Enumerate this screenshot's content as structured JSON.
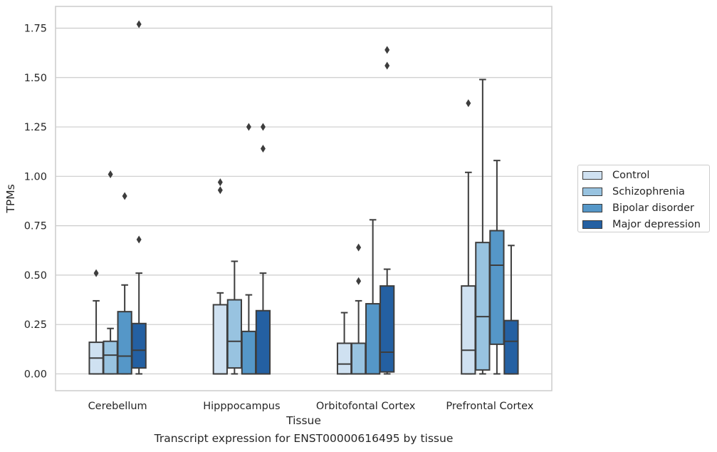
{
  "caption": "Transcript expression for ENST00000616495 by tissue",
  "chart_data": {
    "type": "box",
    "xlabel": "Tissue",
    "ylabel": "TPMs",
    "ylim": [
      -0.085,
      1.86
    ],
    "yticks": [
      0.0,
      0.25,
      0.5,
      0.75,
      1.0,
      1.25,
      1.5,
      1.75
    ],
    "ytick_labels": [
      "0.00",
      "0.25",
      "0.50",
      "0.75",
      "1.00",
      "1.25",
      "1.50",
      "1.75"
    ],
    "grid": "horizontal",
    "legend_position": "right-outside",
    "categories": [
      "Cerebellum",
      "Hipppocampus",
      "Orbitofontal Cortex",
      "Prefrontal Cortex"
    ],
    "series": [
      {
        "name": "Control",
        "color": "#cfe1f1",
        "boxes": [
          {
            "whislo": 0.0,
            "q1": 0.0,
            "med": 0.08,
            "q3": 0.16,
            "whishi": 0.37,
            "fliers": [
              0.51
            ]
          },
          {
            "whislo": 0.0,
            "q1": 0.0,
            "med": 0.0,
            "q3": 0.35,
            "whishi": 0.41,
            "fliers": [
              0.93,
              0.97
            ]
          },
          {
            "whislo": 0.0,
            "q1": 0.0,
            "med": 0.05,
            "q3": 0.155,
            "whishi": 0.31,
            "fliers": []
          },
          {
            "whislo": 0.0,
            "q1": 0.0,
            "med": 0.12,
            "q3": 0.445,
            "whishi": 1.02,
            "fliers": [
              1.37
            ]
          }
        ]
      },
      {
        "name": "Schizophrenia",
        "color": "#98c3e0",
        "boxes": [
          {
            "whislo": 0.0,
            "q1": 0.0,
            "med": 0.095,
            "q3": 0.165,
            "whishi": 0.23,
            "fliers": [
              1.01
            ]
          },
          {
            "whislo": 0.0,
            "q1": 0.03,
            "med": 0.165,
            "q3": 0.375,
            "whishi": 0.57,
            "fliers": []
          },
          {
            "whislo": 0.0,
            "q1": 0.0,
            "med": 0.0,
            "q3": 0.155,
            "whishi": 0.37,
            "fliers": [
              0.47,
              0.64
            ]
          },
          {
            "whislo": 0.0,
            "q1": 0.02,
            "med": 0.29,
            "q3": 0.665,
            "whishi": 1.49,
            "fliers": []
          }
        ]
      },
      {
        "name": "Bipolar disorder",
        "color": "#5597c8",
        "boxes": [
          {
            "whislo": 0.0,
            "q1": 0.0,
            "med": 0.09,
            "q3": 0.315,
            "whishi": 0.45,
            "fliers": [
              0.9
            ]
          },
          {
            "whislo": 0.0,
            "q1": 0.0,
            "med": 0.0,
            "q3": 0.215,
            "whishi": 0.4,
            "fliers": [
              1.25
            ]
          },
          {
            "whislo": 0.0,
            "q1": 0.0,
            "med": 0.0,
            "q3": 0.355,
            "whishi": 0.78,
            "fliers": []
          },
          {
            "whislo": 0.0,
            "q1": 0.15,
            "med": 0.55,
            "q3": 0.725,
            "whishi": 1.08,
            "fliers": []
          }
        ]
      },
      {
        "name": "Major depression",
        "color": "#2460a2",
        "boxes": [
          {
            "whislo": 0.0,
            "q1": 0.03,
            "med": 0.12,
            "q3": 0.255,
            "whishi": 0.51,
            "fliers": [
              0.68,
              1.77
            ]
          },
          {
            "whislo": 0.0,
            "q1": 0.0,
            "med": 0.0,
            "q3": 0.32,
            "whishi": 0.51,
            "fliers": [
              1.14,
              1.25
            ]
          },
          {
            "whislo": 0.0,
            "q1": 0.01,
            "med": 0.11,
            "q3": 0.445,
            "whishi": 0.53,
            "fliers": [
              1.56,
              1.64
            ]
          },
          {
            "whislo": 0.0,
            "q1": 0.0,
            "med": 0.165,
            "q3": 0.27,
            "whishi": 0.65,
            "fliers": []
          }
        ]
      }
    ]
  }
}
